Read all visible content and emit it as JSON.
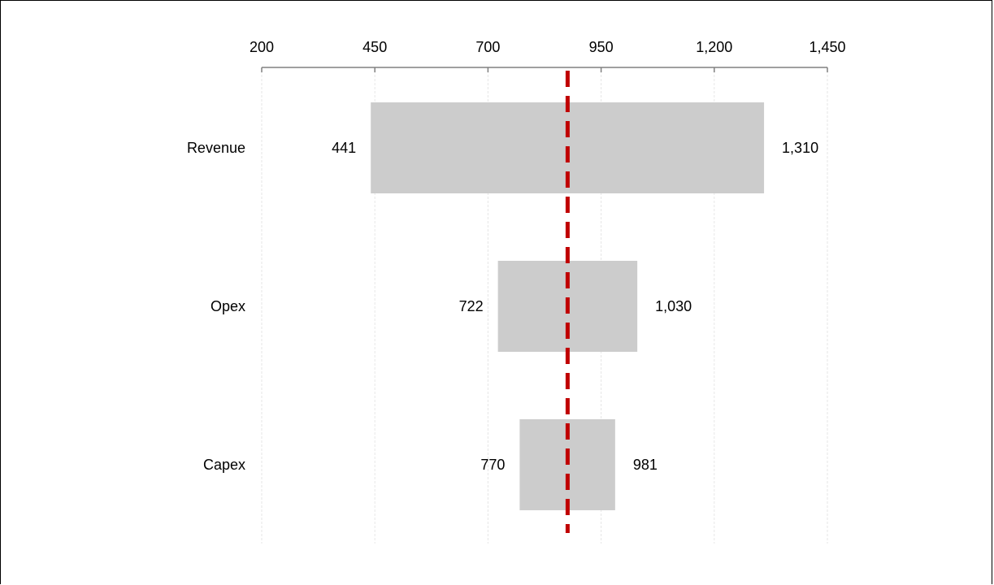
{
  "chart_data": {
    "type": "tornado",
    "baseline": 876,
    "xlim": [
      200,
      1450
    ],
    "ticks": [
      200,
      450,
      700,
      950,
      1200,
      1450
    ],
    "tick_labels": [
      "200",
      "450",
      "700",
      "950",
      "1,200",
      "1,450"
    ],
    "grid": true,
    "categories": [
      "Revenue",
      "Opex",
      "Capex"
    ],
    "low": [
      441,
      722,
      770
    ],
    "high": [
      1310,
      1030,
      981
    ],
    "low_labels": [
      "441",
      "722",
      "770"
    ],
    "high_labels": [
      "1,310",
      "1,030",
      "981"
    ],
    "colors": {
      "bar": "#cccccc",
      "baseline": "#c00000",
      "axis": "#808080",
      "grid": "#e6e6e6"
    }
  }
}
